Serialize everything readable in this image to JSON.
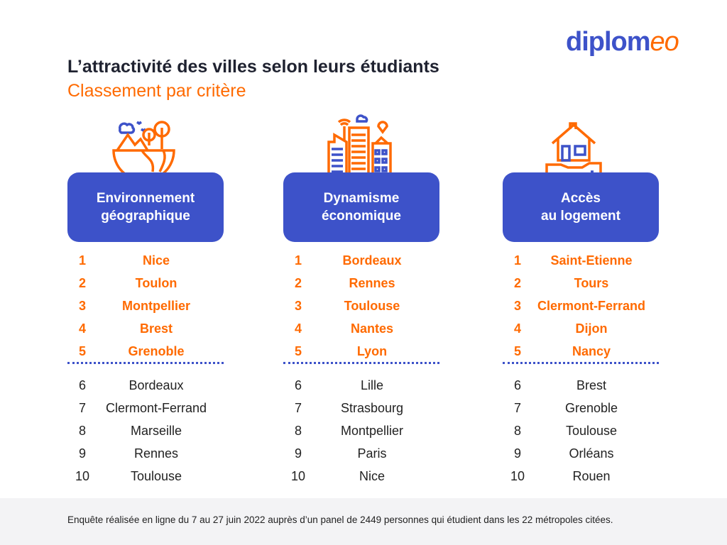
{
  "logo": {
    "part1": "diplom",
    "part2": "eo"
  },
  "header": {
    "title": "L’attractivité des villes selon leurs étudiants",
    "subtitle": "Classement par critère"
  },
  "colors": {
    "blue": "#3d52c9",
    "orange": "#ff6a00"
  },
  "columns": [
    {
      "icon": "nature-landscape-icon",
      "line1": "Environnement",
      "line2": "géographique",
      "ranks": [
        [
          "1",
          "Nice"
        ],
        [
          "2",
          "Toulon"
        ],
        [
          "3",
          "Montpellier"
        ],
        [
          "4",
          "Brest"
        ],
        [
          "5",
          "Grenoble"
        ],
        [
          "6",
          "Bordeaux"
        ],
        [
          "7",
          "Clermont-Ferrand"
        ],
        [
          "8",
          "Marseille"
        ],
        [
          "9",
          "Rennes"
        ],
        [
          "10",
          "Toulouse"
        ]
      ]
    },
    {
      "icon": "city-buildings-icon",
      "line1": "Dynamisme",
      "line2": "économique",
      "ranks": [
        [
          "1",
          "Bordeaux"
        ],
        [
          "2",
          "Rennes"
        ],
        [
          "3",
          "Toulouse"
        ],
        [
          "4",
          "Nantes"
        ],
        [
          "5",
          "Lyon"
        ],
        [
          "6",
          "Lille"
        ],
        [
          "7",
          "Strasbourg"
        ],
        [
          "8",
          "Montpellier"
        ],
        [
          "9",
          "Paris"
        ],
        [
          "10",
          "Nice"
        ]
      ]
    },
    {
      "icon": "house-in-hand-icon",
      "line1": "Accès",
      "line2": "au logement",
      "ranks": [
        [
          "1",
          "Saint-Etienne"
        ],
        [
          "2",
          "Tours"
        ],
        [
          "3",
          "Clermont-Ferrand"
        ],
        [
          "4",
          "Dijon"
        ],
        [
          "5",
          "Nancy"
        ],
        [
          "6",
          "Brest"
        ],
        [
          "7",
          "Grenoble"
        ],
        [
          "8",
          "Toulouse"
        ],
        [
          "9",
          "Orléans"
        ],
        [
          "10",
          "Rouen"
        ]
      ]
    }
  ],
  "footer": {
    "text": "Enquête réalisée en ligne du 7 au 27 juin 2022 auprès d’un panel de 2449 personnes qui étudient dans les 22 métropoles citées."
  }
}
